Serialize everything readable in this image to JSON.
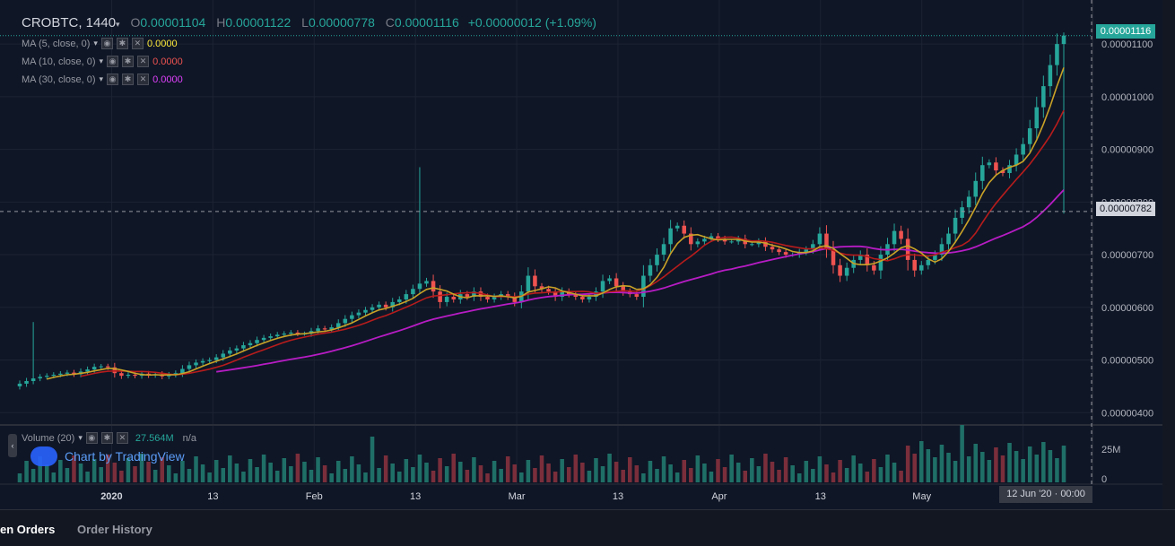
{
  "header": {
    "symbol": "CROBTC, 1440",
    "o_label": "O",
    "o": "0.00001104",
    "h_label": "H",
    "h": "0.00001122",
    "l_label": "L",
    "l": "0.00000778",
    "c_label": "C",
    "c": "0.00001116",
    "change": "+0.00000012 (+1.09%)"
  },
  "indicators": [
    {
      "label": "MA (5, close, 0)",
      "value": "0.0000",
      "color": "#ffeb3b"
    },
    {
      "label": "MA (10, close, 0)",
      "value": "0.0000",
      "color": "#ef5350"
    },
    {
      "label": "MA (30, close, 0)",
      "value": "0.0000",
      "color": "#e040fb"
    }
  ],
  "volume": {
    "label": "Volume (20)",
    "value": "27.564M",
    "extra": "n/a"
  },
  "watermark": "Chart by TradingView",
  "crosshair": {
    "date": "12 Jun '20 · 00:00",
    "price": "0.00000782"
  },
  "last_price": "0.00001116",
  "tabs": {
    "open_orders": "en Orders",
    "order_history": "Order History"
  },
  "colors": {
    "up": "#26a69a",
    "down": "#ef5350",
    "bg": "#0f1626"
  },
  "chart_data": {
    "type": "candlestick",
    "title": "CROBTC, 1440",
    "x_ticks": [
      "2020",
      "13",
      "Feb",
      "13",
      "Mar",
      "13",
      "Apr",
      "13",
      "May",
      "13"
    ],
    "y_ticks": [
      "0.00000400",
      "0.00000500",
      "0.00000600",
      "0.00000700",
      "0.00000800",
      "0.00000900",
      "0.00001000",
      "0.00001100"
    ],
    "ylim": [
      3.8e-06,
      1.17e-05
    ],
    "volume_ticks": [
      "0",
      "25M"
    ],
    "close": [
      4.55,
      4.6,
      4.65,
      4.68,
      4.7,
      4.72,
      4.74,
      4.76,
      4.73,
      4.78,
      4.82,
      4.87,
      4.88,
      4.86,
      4.75,
      4.7,
      4.72,
      4.7,
      4.74,
      4.71,
      4.73,
      4.69,
      4.72,
      4.75,
      4.83,
      4.9,
      4.95,
      4.98,
      5.0,
      5.05,
      5.12,
      5.18,
      5.22,
      5.28,
      5.32,
      5.38,
      5.42,
      5.45,
      5.48,
      5.5,
      5.52,
      5.5,
      5.5,
      5.55,
      5.6,
      5.58,
      5.62,
      5.7,
      5.78,
      5.85,
      5.9,
      5.95,
      6.0,
      6.05,
      6.0,
      6.1,
      6.15,
      6.25,
      6.35,
      6.45,
      6.5,
      6.3,
      6.1,
      6.2,
      6.15,
      6.25,
      6.2,
      6.3,
      6.2,
      6.15,
      6.2,
      6.25,
      6.2,
      6.1,
      6.3,
      6.6,
      6.4,
      6.35,
      6.3,
      6.2,
      6.3,
      6.25,
      6.2,
      6.15,
      6.2,
      6.3,
      6.5,
      6.55,
      6.4,
      6.3,
      6.25,
      6.2,
      6.6,
      6.8,
      7.0,
      7.2,
      7.5,
      7.55,
      7.4,
      7.2,
      7.25,
      7.3,
      7.35,
      7.3,
      7.25,
      7.25,
      7.3,
      7.2,
      7.2,
      7.25,
      7.15,
      7.1,
      7.05,
      7.0,
      7.0,
      7.05,
      7.1,
      7.2,
      7.4,
      7.1,
      6.8,
      6.6,
      6.75,
      6.9,
      7.0,
      6.8,
      6.7,
      7.0,
      7.2,
      7.45,
      7.3,
      6.9,
      6.7,
      6.8,
      6.9,
      7.0,
      7.2,
      7.4,
      7.7,
      7.9,
      8.1,
      8.4,
      8.7,
      8.75,
      8.6,
      8.55,
      8.7,
      8.9,
      9.1,
      9.4,
      9.8,
      10.2,
      10.6,
      11.0,
      11.16
    ]
  }
}
